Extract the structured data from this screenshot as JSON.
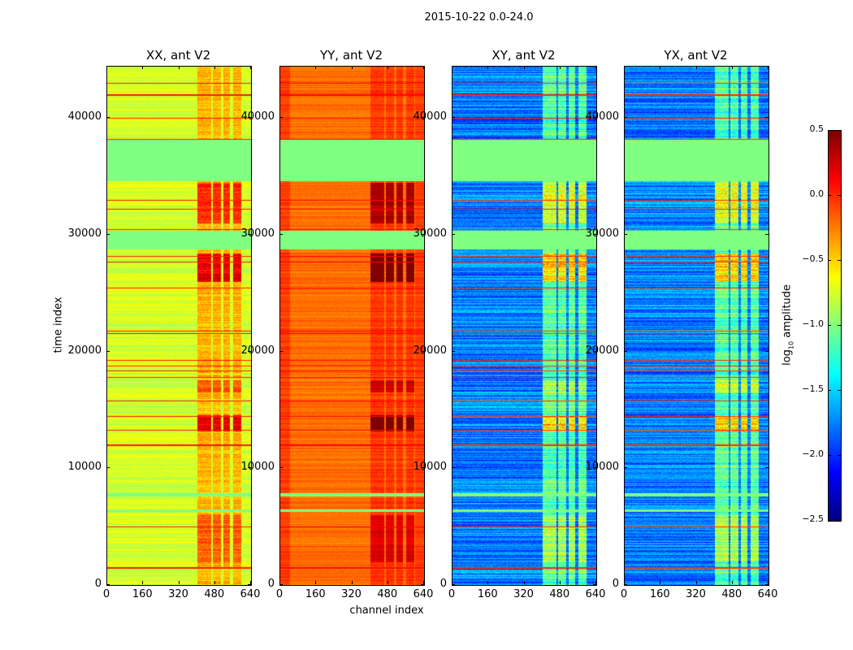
{
  "chart_data": {
    "type": "heatmap",
    "title": "2015-10-22 0.0-24.0",
    "xlabel": "channel index",
    "ylabel": "time index",
    "xlim": [
      0,
      640
    ],
    "ylim": [
      0,
      44400
    ],
    "xticks": [
      0,
      160,
      320,
      480,
      640
    ],
    "yticks": [
      0,
      10000,
      20000,
      30000,
      40000
    ],
    "colorbar": {
      "label_main": "log",
      "label_sub": "10",
      "label_rest": " amplitude",
      "cmap": "jet",
      "range": [
        -2.5,
        0.5
      ],
      "ticks": [
        "0.5",
        "0.0",
        "−0.5",
        "−1.0",
        "−1.5",
        "−2.0",
        "−2.5"
      ],
      "tick_values": [
        0.5,
        0.0,
        -0.5,
        -1.0,
        -1.5,
        -2.0,
        -2.5
      ]
    },
    "flagged_value": -1.0,
    "flagged_time_ranges": [
      [
        34600,
        38200
      ],
      [
        28800,
        30400
      ],
      [
        7600,
        7900
      ],
      [
        6300,
        6500
      ]
    ],
    "hot_channel_ranges": [
      [
        400,
        460
      ],
      [
        470,
        505
      ],
      [
        515,
        545
      ],
      [
        560,
        595
      ]
    ],
    "hot_time_ranges": [
      [
        13200,
        14600,
        0.6
      ],
      [
        26000,
        28400,
        0.6
      ],
      [
        31000,
        34500,
        0.4
      ],
      [
        16500,
        17600,
        0.3
      ],
      [
        2000,
        6000,
        0.25
      ]
    ],
    "line_times": [
      1500,
      5000,
      12000,
      13300,
      14500,
      15800,
      17800,
      18400,
      18800,
      19300,
      21600,
      21800,
      25500,
      27700,
      28200,
      30500,
      32200,
      33000,
      38200,
      40000,
      42000,
      43000
    ],
    "panels": [
      {
        "title": "XX, ant V2",
        "baseline": -0.75,
        "hot_boost": 0.4,
        "noise": 0.12,
        "line_value": 0.05
      },
      {
        "title": "YY, ant V2",
        "baseline": -0.2,
        "hot_boost": 0.2,
        "noise": 0.08,
        "line_value": 0.1
      },
      {
        "title": "XY, ant V2",
        "baseline": -1.75,
        "hot_boost": 0.75,
        "noise": 0.25,
        "line_value": 0.0
      },
      {
        "title": "YX, ant V2",
        "baseline": -1.75,
        "hot_boost": 0.75,
        "noise": 0.25,
        "line_value": 0.0
      }
    ]
  }
}
